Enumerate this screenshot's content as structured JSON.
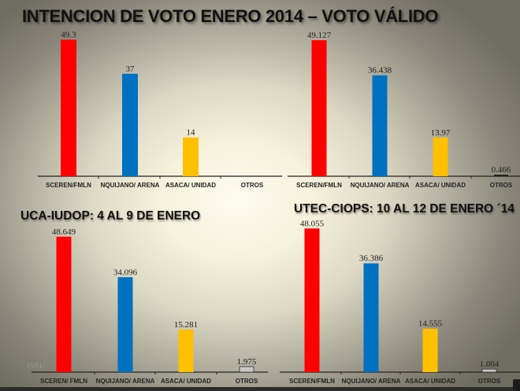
{
  "page": {
    "title": "INTENCION DE VOTO ENERO 2014 – VOTO VÁLIDO",
    "date_watermark": "15/01/"
  },
  "colors": {
    "fmln": "#ff0000",
    "arena": "#0070c0",
    "unidad": "#ffc000",
    "otros": "#c8c8c0",
    "axis": "#222222"
  },
  "chart_data": [
    {
      "type": "bar",
      "id": "top-left",
      "title": "",
      "categories": [
        "SCEREN/FMLN",
        "NQUIJANO/ ARENA",
        "ASACA/ UNIDAD",
        "OTROS"
      ],
      "values": [
        49.3,
        37,
        14,
        null
      ],
      "labels": [
        "49.3",
        "37",
        "14",
        ""
      ],
      "xlabel": "",
      "ylabel": "",
      "ylim": [
        0,
        50
      ],
      "grid": false,
      "legend": "none"
    },
    {
      "type": "bar",
      "id": "top-right",
      "title": "",
      "categories": [
        "SCEREN/FMLN",
        "NQUIJANO/ ARENA",
        "ASACA/ UNIDAD",
        "OTROS"
      ],
      "values": [
        49.127,
        36.438,
        13.97,
        0.466
      ],
      "labels": [
        "49.127",
        "36.438",
        "13.97",
        "0.466"
      ],
      "xlabel": "",
      "ylabel": "",
      "ylim": [
        0,
        50
      ],
      "grid": false,
      "legend": "none"
    },
    {
      "type": "bar",
      "id": "bottom-left",
      "title": "UCA-IUDOP: 4  AL  9 DE ENERO",
      "categories": [
        "SCEREN/ FMLN",
        "NQUIJANO/ ARENA",
        "ASACA/ UNIDAD",
        "OTROS"
      ],
      "values": [
        48.649,
        34.096,
        15.281,
        1.975
      ],
      "labels": [
        "48.649",
        "34.096",
        "15.281",
        "1.975"
      ],
      "xlabel": "",
      "ylabel": "",
      "ylim": [
        0,
        50
      ],
      "grid": false,
      "legend": "none"
    },
    {
      "type": "bar",
      "id": "bottom-right",
      "title": "UTEC-CIOPS: 10 AL 12 DE ENERO ´14",
      "categories": [
        "SCEREN/FMLN",
        "NQUIJANO/ ARENA",
        "ASACA/ UNIDAD",
        "OTROS"
      ],
      "values": [
        48.055,
        36.386,
        14.555,
        1.004
      ],
      "labels": [
        "48.055",
        "36.386",
        "14.555",
        "1.004"
      ],
      "xlabel": "",
      "ylabel": "",
      "ylim": [
        0,
        50
      ],
      "grid": false,
      "legend": "none"
    }
  ]
}
